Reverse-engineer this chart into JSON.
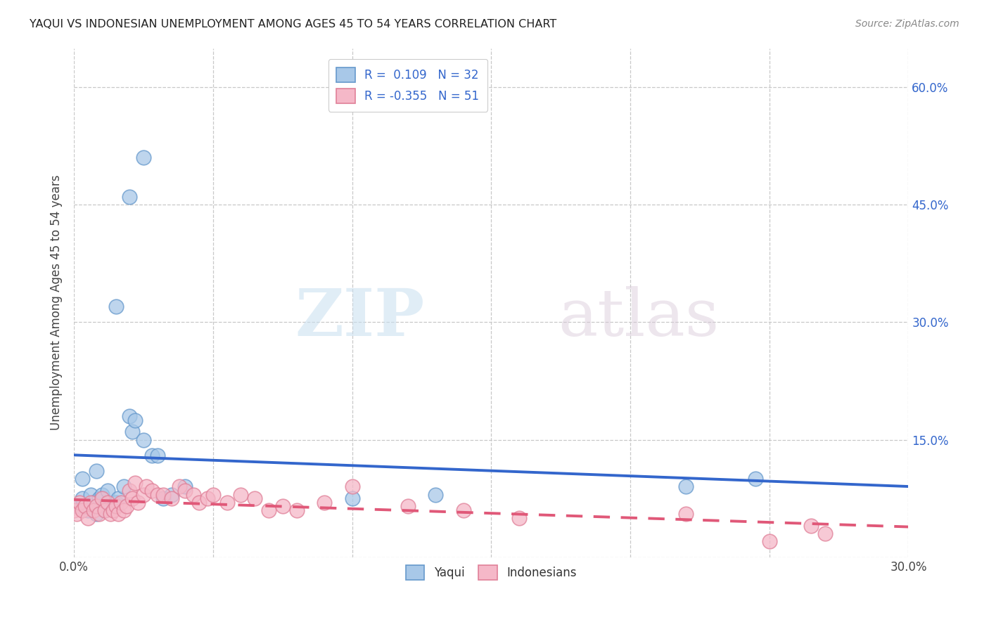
{
  "title": "YAQUI VS INDONESIAN UNEMPLOYMENT AMONG AGES 45 TO 54 YEARS CORRELATION CHART",
  "source": "Source: ZipAtlas.com",
  "ylabel": "Unemployment Among Ages 45 to 54 years",
  "xlim": [
    0.0,
    0.3
  ],
  "ylim": [
    0.0,
    0.65
  ],
  "xticks": [
    0.0,
    0.05,
    0.1,
    0.15,
    0.2,
    0.25,
    0.3
  ],
  "xtick_labels": [
    "0.0%",
    "",
    "",
    "",
    "",
    "",
    "30.0%"
  ],
  "yticks_right": [
    0.15,
    0.3,
    0.45,
    0.6
  ],
  "ytick_labels_right": [
    "15.0%",
    "30.0%",
    "45.0%",
    "60.0%"
  ],
  "background_color": "#ffffff",
  "grid_color": "#c8c8c8",
  "yaqui_color": "#a8c8e8",
  "yaqui_edge_color": "#6699cc",
  "indonesian_color": "#f5b8c8",
  "indonesian_edge_color": "#e08098",
  "yaqui_line_color": "#3366cc",
  "indonesian_line_color": "#e05878",
  "legend_text_line1": "R =  0.109   N = 32",
  "legend_text_line2": "R = -0.355   N = 51",
  "legend_label_yaqui": "Yaqui",
  "legend_label_indonesian": "Indonesians",
  "watermark_zip": "ZIP",
  "watermark_atlas": "atlas",
  "yaqui_x": [
    0.001,
    0.003,
    0.005,
    0.006,
    0.007,
    0.008,
    0.009,
    0.01,
    0.011,
    0.012,
    0.013,
    0.015,
    0.016,
    0.018,
    0.02,
    0.021,
    0.022,
    0.025,
    0.028,
    0.03,
    0.032,
    0.035,
    0.04,
    0.015,
    0.02,
    0.025,
    0.1,
    0.13,
    0.22,
    0.245,
    0.003,
    0.008
  ],
  "yaqui_y": [
    0.065,
    0.075,
    0.06,
    0.08,
    0.07,
    0.055,
    0.075,
    0.08,
    0.06,
    0.085,
    0.065,
    0.07,
    0.075,
    0.09,
    0.18,
    0.16,
    0.175,
    0.15,
    0.13,
    0.13,
    0.075,
    0.08,
    0.09,
    0.32,
    0.46,
    0.51,
    0.075,
    0.08,
    0.09,
    0.1,
    0.1,
    0.11
  ],
  "indonesian_x": [
    0.0,
    0.001,
    0.002,
    0.003,
    0.004,
    0.005,
    0.006,
    0.007,
    0.008,
    0.009,
    0.01,
    0.011,
    0.012,
    0.013,
    0.014,
    0.015,
    0.016,
    0.017,
    0.018,
    0.019,
    0.02,
    0.021,
    0.022,
    0.023,
    0.025,
    0.026,
    0.028,
    0.03,
    0.032,
    0.035,
    0.038,
    0.04,
    0.043,
    0.045,
    0.048,
    0.05,
    0.055,
    0.06,
    0.065,
    0.07,
    0.075,
    0.08,
    0.09,
    0.1,
    0.12,
    0.14,
    0.16,
    0.22,
    0.25,
    0.265,
    0.27
  ],
  "indonesian_y": [
    0.06,
    0.055,
    0.07,
    0.06,
    0.065,
    0.05,
    0.07,
    0.06,
    0.065,
    0.055,
    0.075,
    0.06,
    0.07,
    0.055,
    0.06,
    0.065,
    0.055,
    0.07,
    0.06,
    0.065,
    0.085,
    0.075,
    0.095,
    0.07,
    0.08,
    0.09,
    0.085,
    0.08,
    0.08,
    0.075,
    0.09,
    0.085,
    0.08,
    0.07,
    0.075,
    0.08,
    0.07,
    0.08,
    0.075,
    0.06,
    0.065,
    0.06,
    0.07,
    0.09,
    0.065,
    0.06,
    0.05,
    0.055,
    0.02,
    0.04,
    0.03
  ]
}
